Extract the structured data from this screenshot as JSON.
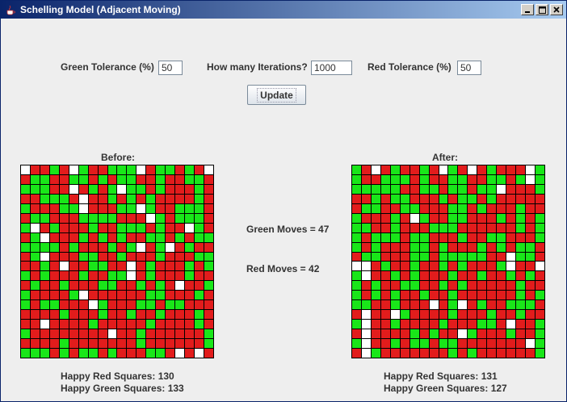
{
  "window": {
    "title": "Schelling Model (Adjacent Moving)",
    "controls": [
      "minimize-icon",
      "maximize-icon",
      "close-icon"
    ]
  },
  "controls": {
    "green_tolerance_label": "Green Tolerance (%)",
    "green_tolerance_value": "50",
    "iterations_label": "How many Iterations?",
    "iterations_value": "1000",
    "red_tolerance_label": "Red Tolerance (%)",
    "red_tolerance_value": "50",
    "update_label": "Update"
  },
  "before": {
    "title": "Before:",
    "happy_red": "Happy Red Squares: 130",
    "happy_green": "Happy Green Squares: 133",
    "grid": [
      "WRRGRWGRRGGGWRGGRGRW",
      "RGGRRGGRGRGGRRGRRGGR",
      "GGGRRWRGRGWGGRGRRRGR",
      "RRGGGRWRRGRGRGRRRRGR",
      "GRRRGGWRRRGGWGRRGGGR",
      "RGGRRRGGGGRRRWGRGGGR",
      "GWRGRRRGRRGGGRGRRWGR",
      "RGWRRRGRGRGRRGGRGRGG",
      "GGGGRGRRRGRGWRGWRGRR",
      "RGWRRRGGRRGRRRGRRRGG",
      "RRGRWRRGGRRWRGRRRGRG",
      "GRGRRRGRRGGWRGRRRGRR",
      "RGRRGRRRGGRRGRGRWRRG",
      "GRRRRGWRRRRRRGGRRRGR",
      "GRGGRRRWGRRRGGRGGRRR",
      "RRRRGRRRGRRGRRGRRRGR",
      "RRWRRRRGRRRRRGRRRRGR",
      "GRRRRRRRRWRRGRRRRRRG",
      "RRRRGRRRRRRRGRRRRRRG",
      "GGGRGRGGRGRRRGGRWRWR"
    ]
  },
  "after": {
    "title": "After:",
    "happy_red": "Happy Red Squares: 131",
    "happy_green": "Happy Green Squares: 127",
    "grid": [
      "GRWRGRRGRWGRWRGRRRWG",
      "GRRGGGRGRRGGRRGGRGWG",
      "GGGGGRRGGRGGRGGWRRRG",
      "RRGRGGRRRGRGGRGRRRRR",
      "RGGRRGGRRRGGRGRRRGRR",
      "GRRRGRWGRRGGRRRGRGRG",
      "GGRRGRRRGGGRRRRRRGRG",
      "GRGGGRGGRRRGRRGGRRRG",
      "GRGRRRGGRGRRRGRGRGGR",
      "RGGRRRGGRGGGGGRRWGGR",
      "WWRGRRGRRGRGRRRGWRRW",
      "GWRRGRGRRRGRRGRRGRGR",
      "GRGRRGGRRGRGRRRRRGRR",
      "GRGRGRRGRRGRRRRRRGRG",
      "GGRRGRRRWRGWRGRRGGGR",
      "RWRRWGRRRRGRRRGRRGRR",
      "GWRRGRRRRGRRRGGRWRRG",
      "RWRRRRGRGRRWGRRRGRRG",
      "GWRRGRGGRGGRRRRRRRWG",
      "RWGRRRRRRRGRGRRRRRRG"
    ]
  },
  "moves": {
    "green": "Green Moves = 47",
    "red": "Red Moves = 42"
  },
  "colors": {
    "red": "#e21c1c",
    "green": "#19e619",
    "empty": "#ffffff",
    "grid_line": "#000000"
  }
}
